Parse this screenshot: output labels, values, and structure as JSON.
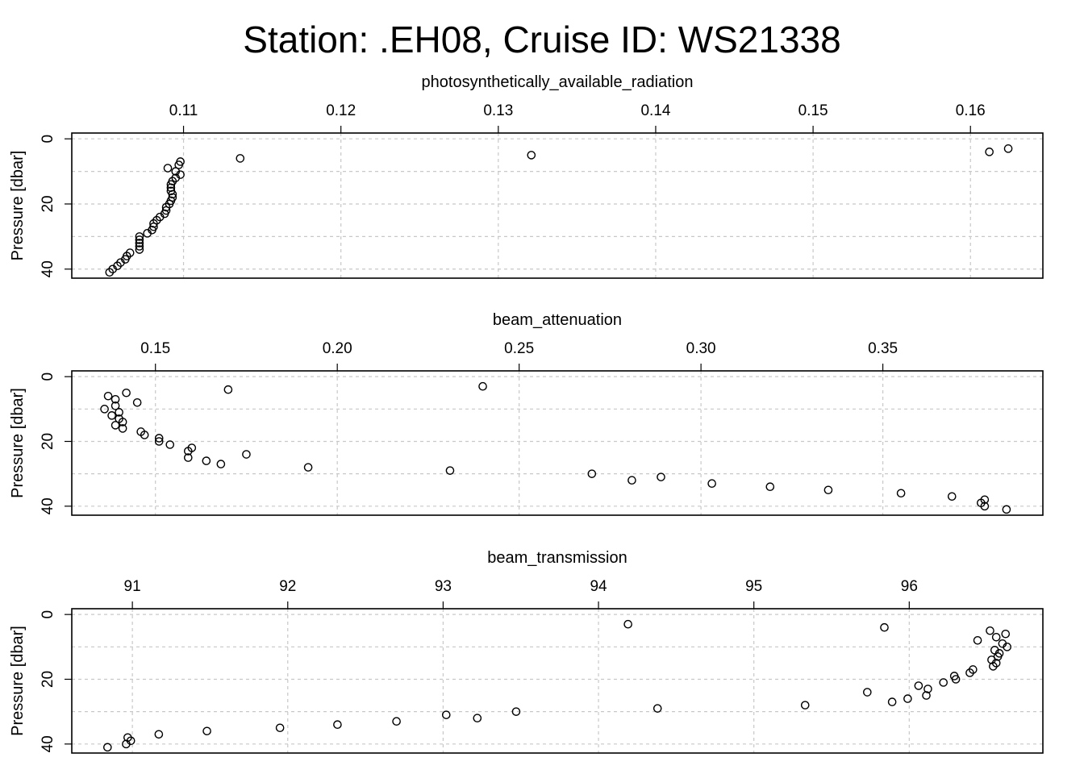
{
  "title": "Station: .EH08, Cruise ID: WS21338",
  "chart_data": [
    {
      "type": "scatter",
      "title": "photosynthetically_available_radiation",
      "ylabel": "Pressure [dbar]",
      "xlim": [
        0.1029,
        0.1646
      ],
      "ylim": [
        0,
        41
      ],
      "y_reversed": true,
      "grid": true,
      "x_ticks": [
        0.11,
        0.12,
        0.13,
        0.14,
        0.15,
        0.16
      ],
      "x_tick_labels": [
        "0.11",
        "0.12",
        "0.13",
        "0.14",
        "0.15",
        "0.16"
      ],
      "y_ticks": [
        0,
        20,
        40
      ],
      "y_tick_labels": [
        "0",
        "20",
        "40"
      ],
      "points": [
        {
          "x": 0.1624,
          "y": 3
        },
        {
          "x": 0.1612,
          "y": 4
        },
        {
          "x": 0.1321,
          "y": 5
        },
        {
          "x": 0.1136,
          "y": 6
        },
        {
          "x": 0.1098,
          "y": 7
        },
        {
          "x": 0.1097,
          "y": 8
        },
        {
          "x": 0.109,
          "y": 9
        },
        {
          "x": 0.1095,
          "y": 10
        },
        {
          "x": 0.1098,
          "y": 11
        },
        {
          "x": 0.1095,
          "y": 12
        },
        {
          "x": 0.1093,
          "y": 13
        },
        {
          "x": 0.1092,
          "y": 14
        },
        {
          "x": 0.1092,
          "y": 15
        },
        {
          "x": 0.1092,
          "y": 16
        },
        {
          "x": 0.1093,
          "y": 17
        },
        {
          "x": 0.1093,
          "y": 18
        },
        {
          "x": 0.1092,
          "y": 19
        },
        {
          "x": 0.1091,
          "y": 20
        },
        {
          "x": 0.1089,
          "y": 21
        },
        {
          "x": 0.1089,
          "y": 22
        },
        {
          "x": 0.1088,
          "y": 23
        },
        {
          "x": 0.1085,
          "y": 24
        },
        {
          "x": 0.1083,
          "y": 25
        },
        {
          "x": 0.1081,
          "y": 26
        },
        {
          "x": 0.1081,
          "y": 27
        },
        {
          "x": 0.108,
          "y": 28
        },
        {
          "x": 0.1077,
          "y": 29
        },
        {
          "x": 0.1072,
          "y": 30
        },
        {
          "x": 0.1072,
          "y": 31
        },
        {
          "x": 0.1072,
          "y": 32
        },
        {
          "x": 0.1072,
          "y": 33
        },
        {
          "x": 0.1072,
          "y": 34
        },
        {
          "x": 0.1066,
          "y": 35
        },
        {
          "x": 0.1064,
          "y": 36
        },
        {
          "x": 0.1063,
          "y": 37
        },
        {
          "x": 0.106,
          "y": 38
        },
        {
          "x": 0.1058,
          "y": 39
        },
        {
          "x": 0.1055,
          "y": 40
        },
        {
          "x": 0.1053,
          "y": 41
        }
      ]
    },
    {
      "type": "scatter",
      "title": "beam_attenuation",
      "ylabel": "Pressure [dbar]",
      "xlim": [
        0.127,
        0.394
      ],
      "ylim": [
        0,
        41
      ],
      "y_reversed": true,
      "grid": true,
      "x_ticks": [
        0.15,
        0.2,
        0.25,
        0.3,
        0.35
      ],
      "x_tick_labels": [
        "0.15",
        "0.20",
        "0.25",
        "0.30",
        "0.35"
      ],
      "y_ticks": [
        0,
        20,
        40
      ],
      "y_tick_labels": [
        "0",
        "20",
        "40"
      ],
      "points": [
        {
          "x": 0.24,
          "y": 3
        },
        {
          "x": 0.17,
          "y": 4
        },
        {
          "x": 0.142,
          "y": 5
        },
        {
          "x": 0.137,
          "y": 6
        },
        {
          "x": 0.139,
          "y": 7
        },
        {
          "x": 0.145,
          "y": 8
        },
        {
          "x": 0.139,
          "y": 9
        },
        {
          "x": 0.136,
          "y": 10
        },
        {
          "x": 0.14,
          "y": 11
        },
        {
          "x": 0.138,
          "y": 12
        },
        {
          "x": 0.14,
          "y": 13
        },
        {
          "x": 0.141,
          "y": 14
        },
        {
          "x": 0.139,
          "y": 15
        },
        {
          "x": 0.141,
          "y": 16
        },
        {
          "x": 0.146,
          "y": 17
        },
        {
          "x": 0.147,
          "y": 18
        },
        {
          "x": 0.151,
          "y": 19
        },
        {
          "x": 0.151,
          "y": 20
        },
        {
          "x": 0.154,
          "y": 21
        },
        {
          "x": 0.16,
          "y": 22
        },
        {
          "x": 0.159,
          "y": 23
        },
        {
          "x": 0.175,
          "y": 24
        },
        {
          "x": 0.159,
          "y": 25
        },
        {
          "x": 0.164,
          "y": 26
        },
        {
          "x": 0.168,
          "y": 27
        },
        {
          "x": 0.192,
          "y": 28
        },
        {
          "x": 0.231,
          "y": 29
        },
        {
          "x": 0.27,
          "y": 30
        },
        {
          "x": 0.289,
          "y": 31
        },
        {
          "x": 0.281,
          "y": 32
        },
        {
          "x": 0.303,
          "y": 33
        },
        {
          "x": 0.319,
          "y": 34
        },
        {
          "x": 0.335,
          "y": 35
        },
        {
          "x": 0.355,
          "y": 36
        },
        {
          "x": 0.369,
          "y": 37
        },
        {
          "x": 0.378,
          "y": 38
        },
        {
          "x": 0.377,
          "y": 39
        },
        {
          "x": 0.378,
          "y": 40
        },
        {
          "x": 0.384,
          "y": 41
        }
      ]
    },
    {
      "type": "scatter",
      "title": "beam_transmission",
      "ylabel": "Pressure [dbar]",
      "xlim": [
        90.61,
        96.86
      ],
      "ylim": [
        0,
        41
      ],
      "y_reversed": true,
      "grid": true,
      "x_ticks": [
        91,
        92,
        93,
        94,
        95,
        96
      ],
      "x_tick_labels": [
        "91",
        "92",
        "93",
        "94",
        "95",
        "96"
      ],
      "y_ticks": [
        0,
        20,
        40
      ],
      "y_tick_labels": [
        "0",
        "20",
        "40"
      ],
      "points": [
        {
          "x": 94.19,
          "y": 3
        },
        {
          "x": 95.84,
          "y": 4
        },
        {
          "x": 96.52,
          "y": 5
        },
        {
          "x": 96.62,
          "y": 6
        },
        {
          "x": 96.56,
          "y": 7
        },
        {
          "x": 96.44,
          "y": 8
        },
        {
          "x": 96.6,
          "y": 9
        },
        {
          "x": 96.63,
          "y": 10
        },
        {
          "x": 96.55,
          "y": 11
        },
        {
          "x": 96.58,
          "y": 12
        },
        {
          "x": 96.57,
          "y": 13
        },
        {
          "x": 96.53,
          "y": 14
        },
        {
          "x": 96.56,
          "y": 15
        },
        {
          "x": 96.54,
          "y": 16
        },
        {
          "x": 96.41,
          "y": 17
        },
        {
          "x": 96.39,
          "y": 18
        },
        {
          "x": 96.29,
          "y": 19
        },
        {
          "x": 96.3,
          "y": 20
        },
        {
          "x": 96.22,
          "y": 21
        },
        {
          "x": 96.06,
          "y": 22
        },
        {
          "x": 96.12,
          "y": 23
        },
        {
          "x": 95.73,
          "y": 24
        },
        {
          "x": 96.11,
          "y": 25
        },
        {
          "x": 95.99,
          "y": 26
        },
        {
          "x": 95.89,
          "y": 27
        },
        {
          "x": 95.33,
          "y": 28
        },
        {
          "x": 94.38,
          "y": 29
        },
        {
          "x": 93.47,
          "y": 30
        },
        {
          "x": 93.02,
          "y": 31
        },
        {
          "x": 93.22,
          "y": 32
        },
        {
          "x": 92.7,
          "y": 33
        },
        {
          "x": 92.32,
          "y": 34
        },
        {
          "x": 91.95,
          "y": 35
        },
        {
          "x": 91.48,
          "y": 36
        },
        {
          "x": 91.17,
          "y": 37
        },
        {
          "x": 90.97,
          "y": 38
        },
        {
          "x": 90.99,
          "y": 39
        },
        {
          "x": 90.96,
          "y": 40
        },
        {
          "x": 90.84,
          "y": 41
        }
      ]
    }
  ]
}
